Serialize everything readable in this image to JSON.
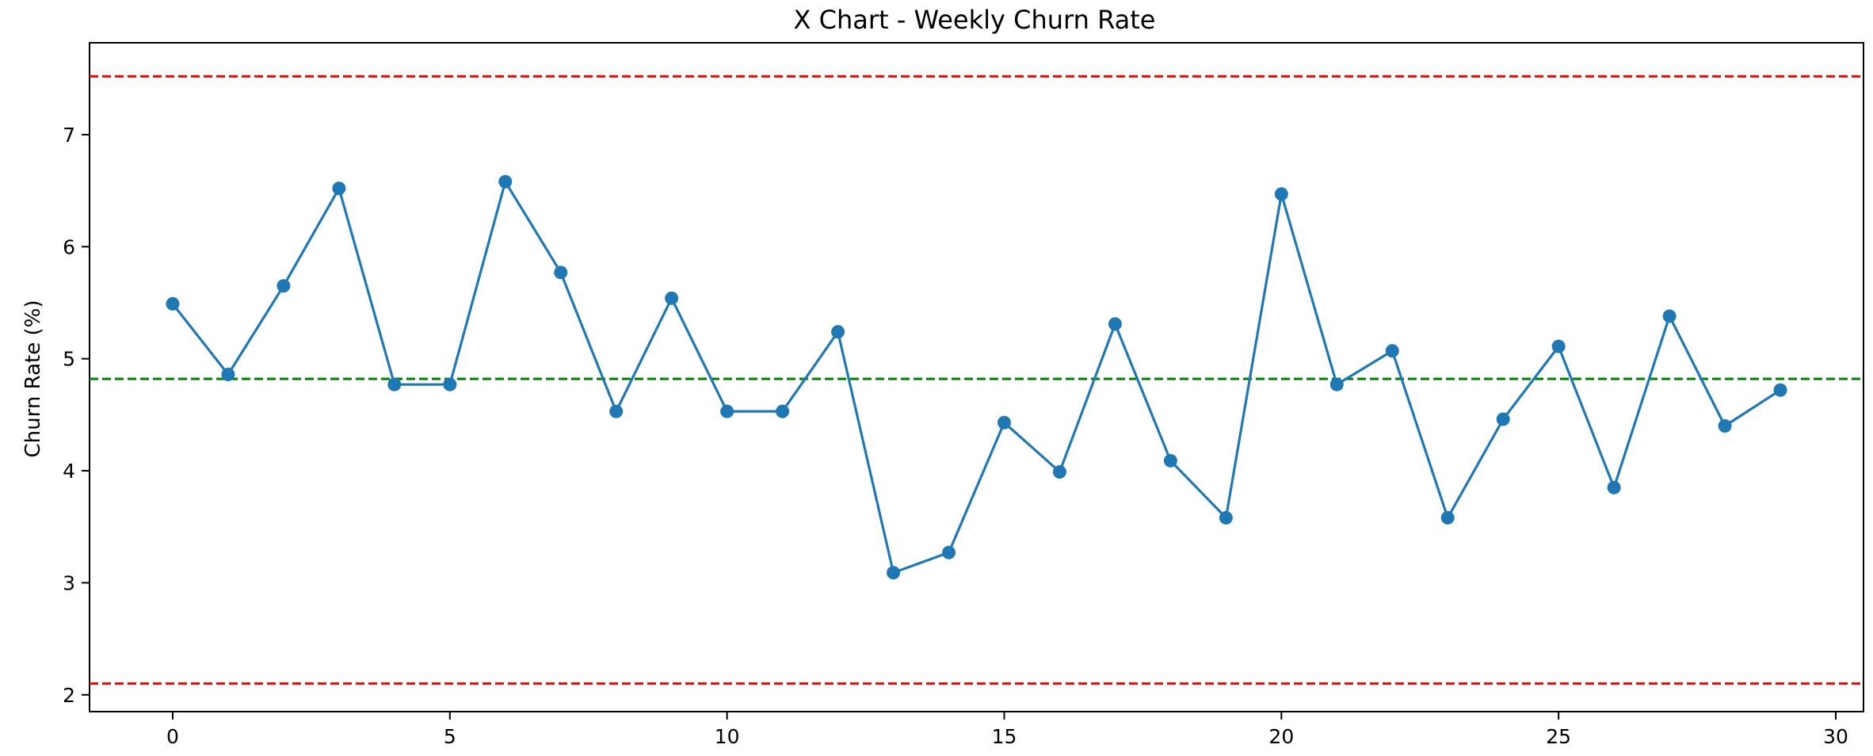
{
  "chart_data": {
    "type": "line",
    "title": "X Chart - Weekly Churn Rate",
    "xlabel": "",
    "ylabel": "Churn Rate (%)",
    "xlim": [
      -1.5,
      30.5
    ],
    "ylim": [
      1.85,
      7.82
    ],
    "xticks": [
      0,
      5,
      10,
      15,
      20,
      25,
      30
    ],
    "yticks": [
      2,
      3,
      4,
      5,
      6,
      7
    ],
    "grid": false,
    "legend": "none",
    "series": [
      {
        "color": "#1f77b4",
        "marker": "circle",
        "x": [
          0,
          1,
          2,
          3,
          4,
          5,
          6,
          7,
          8,
          9,
          10,
          11,
          12,
          13,
          14,
          15,
          16,
          17,
          18,
          19,
          20,
          21,
          22,
          23,
          24,
          25,
          26,
          27,
          28,
          29
        ],
        "y": [
          5.49,
          4.86,
          5.65,
          6.52,
          4.77,
          4.77,
          6.58,
          5.77,
          4.53,
          5.54,
          4.53,
          4.53,
          5.24,
          3.09,
          3.27,
          4.43,
          3.99,
          5.31,
          4.09,
          3.58,
          6.47,
          4.77,
          5.07,
          3.58,
          4.46,
          5.11,
          3.85,
          5.38,
          4.4,
          4.72
        ]
      }
    ],
    "reference_lines": [
      {
        "value": 7.52,
        "color": "#ff0000",
        "style": "dashed"
      },
      {
        "value": 4.82,
        "color": "#008000",
        "style": "dashed"
      },
      {
        "value": 2.1,
        "color": "#ff0000",
        "style": "dashed"
      }
    ]
  }
}
